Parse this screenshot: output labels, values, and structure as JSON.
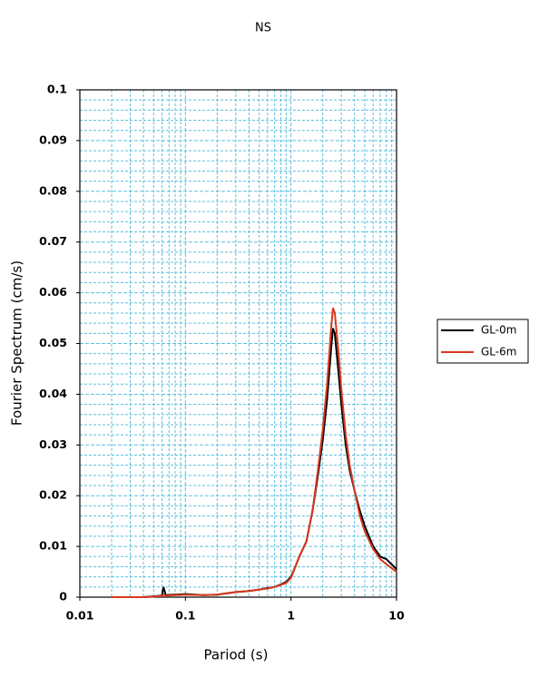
{
  "chart_data": {
    "type": "line",
    "title": "NS",
    "x_label": "Pariod (s)",
    "y_label": "Fourier Spectrum (cm/s)",
    "x": [
      0.02,
      0.04,
      0.06,
      0.062,
      0.065,
      0.08,
      0.1,
      0.15,
      0.2,
      0.3,
      0.4,
      0.5,
      0.6,
      0.7,
      0.8,
      0.9,
      1.0,
      1.1,
      1.2,
      1.4,
      1.6,
      1.8,
      2.0,
      2.2,
      2.4,
      2.5,
      2.6,
      2.8,
      3.0,
      3.3,
      3.6,
      4.0,
      4.5,
      5.0,
      6.0,
      7.0,
      8.0,
      10
    ],
    "series": [
      {
        "name": "GL-0m",
        "color": "#000000",
        "values": [
          0,
          0,
          0.0003,
          0.002,
          0.0004,
          0.0005,
          0.0006,
          0.0004,
          0.0005,
          0.001,
          0.0012,
          0.0015,
          0.0018,
          0.002,
          0.0025,
          0.003,
          0.004,
          0.006,
          0.008,
          0.011,
          0.017,
          0.024,
          0.031,
          0.039,
          0.049,
          0.053,
          0.052,
          0.045,
          0.038,
          0.03,
          0.025,
          0.021,
          0.017,
          0.014,
          0.01,
          0.008,
          0.0075,
          0.0055
        ]
      },
      {
        "name": "GL-6m",
        "color": "#d9381e",
        "values": [
          0,
          0,
          0.0002,
          0.0005,
          0.0003,
          0.0004,
          0.0005,
          0.0004,
          0.0005,
          0.001,
          0.0012,
          0.0015,
          0.0017,
          0.002,
          0.0024,
          0.0028,
          0.0038,
          0.006,
          0.008,
          0.011,
          0.017,
          0.025,
          0.033,
          0.042,
          0.053,
          0.057,
          0.056,
          0.049,
          0.041,
          0.032,
          0.026,
          0.021,
          0.016,
          0.013,
          0.0095,
          0.0075,
          0.0065,
          0.005
        ]
      }
    ],
    "xlim": [
      0.01,
      10
    ],
    "xticks": [
      0.01,
      0.1,
      1,
      10
    ],
    "x_log": true,
    "ylim": [
      0,
      0.1
    ],
    "yticks": [
      0,
      0.01,
      0.02,
      0.03,
      0.04,
      0.05,
      0.06,
      0.07,
      0.08,
      0.09,
      0.1
    ],
    "grid": true,
    "grid_color": "#5bc0de",
    "legend": "outside-right"
  }
}
